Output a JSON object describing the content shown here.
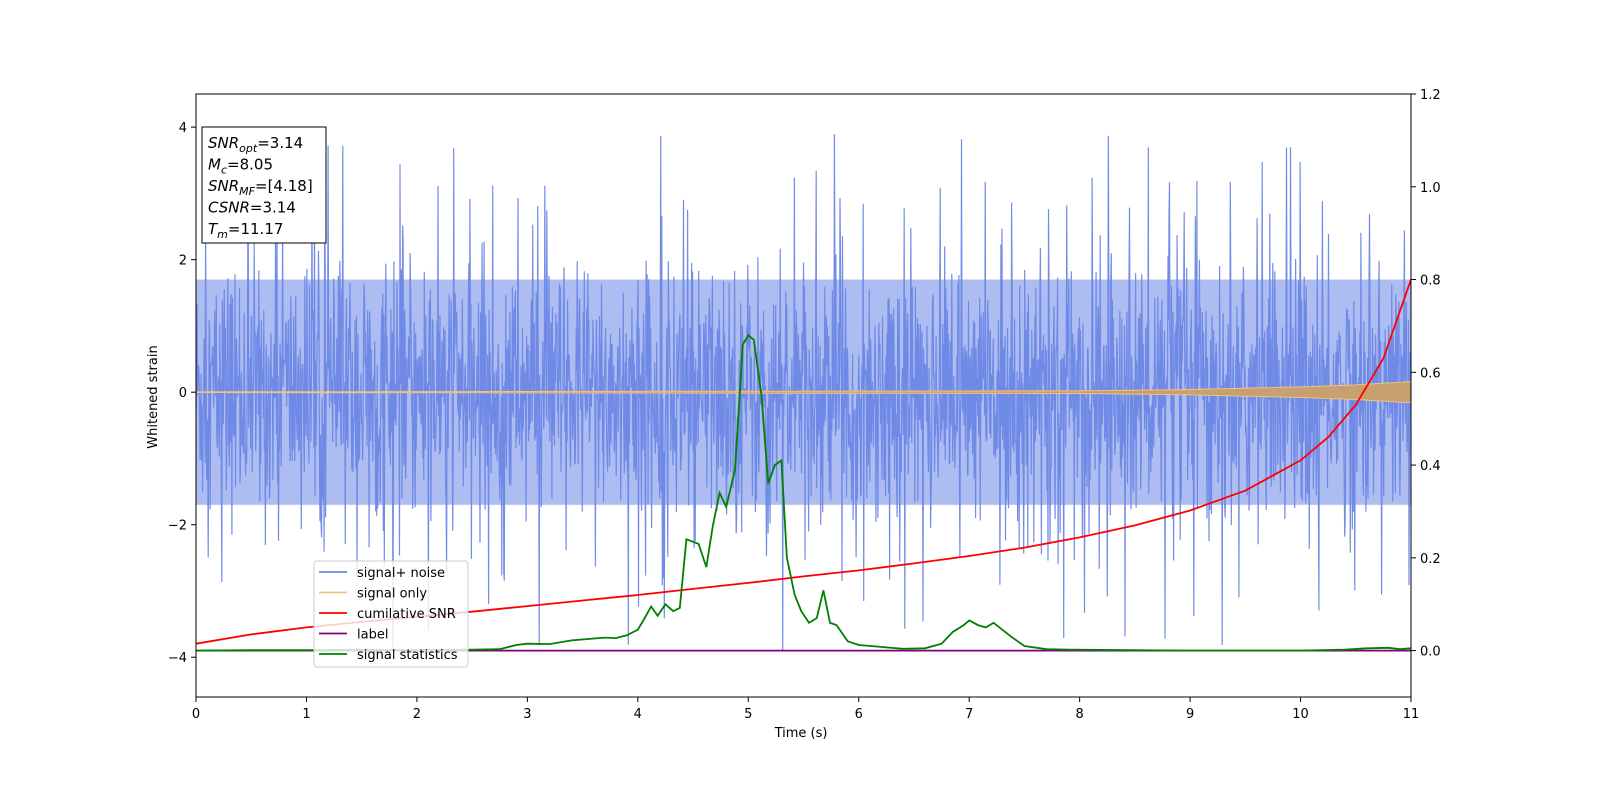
{
  "chart_data": {
    "type": "line",
    "xlabel": "Time (s)",
    "ylabel": "Whitened strain",
    "xlim": [
      0,
      11
    ],
    "ylim": [
      -4.6,
      4.5
    ],
    "y2lim": [
      -0.1,
      1.2
    ],
    "x_ticks": [
      "0",
      "1",
      "2",
      "3",
      "4",
      "5",
      "6",
      "7",
      "8",
      "9",
      "10",
      "11"
    ],
    "y_ticks": [
      "−4",
      "−2",
      "0",
      "2",
      "4"
    ],
    "y2_ticks": [
      "0.0",
      "0.2",
      "0.4",
      "0.6",
      "0.8",
      "1.0",
      "1.2"
    ],
    "info_box": [
      {
        "var": "SNR",
        "sub": "opt",
        "value": "=3.14"
      },
      {
        "var": "M",
        "sub": "c",
        "value": "=8.05"
      },
      {
        "var": "SNR",
        "sub": "MF",
        "value": "=[4.18]"
      },
      {
        "var": "CSNR",
        "sub": "",
        "value": "=3.14"
      },
      {
        "var": "T",
        "sub": "m",
        "value": "=11.17"
      }
    ],
    "legend": {
      "placement": "lower-left",
      "entries": [
        {
          "label": "signal+ noise",
          "color": "#6b87e6"
        },
        {
          "label": "signal only",
          "color": "#f5c27a"
        },
        {
          "label": "cumilative SNR",
          "color": "#ff0000"
        },
        {
          "label": "label",
          "color": "#800080"
        },
        {
          "label": "signal statistics",
          "color": "#008000"
        }
      ]
    },
    "series": [
      {
        "name": "signal+ noise",
        "axis": "left",
        "color": "#6b87e6",
        "style": "dense-noise",
        "band": [
          -1.7,
          1.7
        ],
        "envelope_peak": 4.1
      },
      {
        "name": "signal only",
        "axis": "left",
        "color": "#c8a070",
        "amp": [
          [
            0,
            0.005
          ],
          [
            8,
            0.02
          ],
          [
            9,
            0.04
          ],
          [
            10,
            0.08
          ],
          [
            10.5,
            0.11
          ],
          [
            11,
            0.16
          ]
        ]
      },
      {
        "name": "cumilative SNR",
        "axis": "right",
        "color": "#ff0000",
        "x": [
          0,
          0.5,
          1,
          1.5,
          2,
          2.5,
          3,
          3.5,
          4,
          4.5,
          5,
          5.5,
          6,
          6.5,
          7,
          7.5,
          8,
          8.5,
          9,
          9.5,
          10,
          10.25,
          10.5,
          10.75,
          11
        ],
        "y": [
          0.015,
          0.035,
          0.05,
          0.062,
          0.073,
          0.084,
          0.096,
          0.108,
          0.12,
          0.133,
          0.146,
          0.16,
          0.173,
          0.188,
          0.204,
          0.222,
          0.244,
          0.27,
          0.302,
          0.345,
          0.41,
          0.46,
          0.53,
          0.63,
          0.8
        ]
      },
      {
        "name": "label",
        "axis": "right",
        "color": "#800080",
        "x": [
          0,
          11
        ],
        "y": [
          0.0,
          0.0
        ]
      },
      {
        "name": "signal statistics",
        "axis": "right",
        "color": "#008000",
        "x": [
          0,
          0.5,
          1,
          1.5,
          2,
          2.5,
          2.75,
          2.9,
          3,
          3.2,
          3.4,
          3.55,
          3.7,
          3.8,
          3.9,
          4,
          4.05,
          4.12,
          4.18,
          4.25,
          4.32,
          4.38,
          4.44,
          4.55,
          4.62,
          4.68,
          4.74,
          4.8,
          4.88,
          4.95,
          5,
          5.05,
          5.12,
          5.18,
          5.24,
          5.3,
          5.35,
          5.42,
          5.48,
          5.55,
          5.62,
          5.68,
          5.74,
          5.8,
          5.9,
          6,
          6.2,
          6.4,
          6.6,
          6.75,
          6.85,
          6.95,
          7,
          7.08,
          7.15,
          7.22,
          7.3,
          7.38,
          7.5,
          7.7,
          7.9,
          8.5,
          9,
          9.5,
          10,
          10.4,
          10.6,
          10.8,
          10.9,
          11
        ],
        "y": [
          0.0,
          0.001,
          0.001,
          0.002,
          0.001,
          0.002,
          0.003,
          0.012,
          0.015,
          0.014,
          0.022,
          0.025,
          0.028,
          0.027,
          0.033,
          0.045,
          0.065,
          0.095,
          0.075,
          0.1,
          0.085,
          0.092,
          0.24,
          0.23,
          0.18,
          0.27,
          0.34,
          0.31,
          0.39,
          0.66,
          0.68,
          0.67,
          0.55,
          0.36,
          0.4,
          0.41,
          0.2,
          0.12,
          0.085,
          0.06,
          0.07,
          0.13,
          0.06,
          0.055,
          0.02,
          0.012,
          0.008,
          0.004,
          0.005,
          0.015,
          0.04,
          0.055,
          0.065,
          0.055,
          0.05,
          0.06,
          0.045,
          0.03,
          0.01,
          0.003,
          0.002,
          0.001,
          0.0,
          0.0,
          0.0,
          0.002,
          0.005,
          0.006,
          0.003,
          0.005
        ]
      }
    ]
  }
}
